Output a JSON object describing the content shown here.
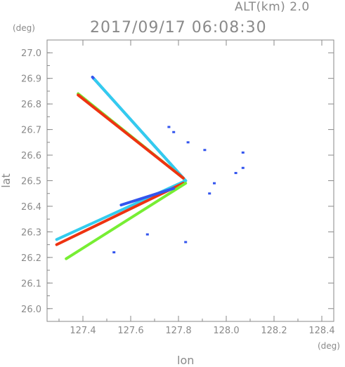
{
  "chart_data": {
    "type": "scatter",
    "title": "2017/09/17 06:08:30",
    "subtitle": "ALT(km) 2.0",
    "xlabel": "lon",
    "ylabel": "lat",
    "xunit": "(deg)",
    "yunit": "(deg)",
    "xlim": [
      127.25,
      128.45
    ],
    "ylim": [
      25.95,
      27.05
    ],
    "xticks": [
      "127.4",
      "127.6",
      "127.8",
      "128.0",
      "128.2",
      "128.4"
    ],
    "yticks": [
      "26.0",
      "26.1",
      "26.2",
      "26.3",
      "26.4",
      "26.5",
      "26.6",
      "26.7",
      "26.8",
      "26.9",
      "27.0"
    ],
    "grid": false,
    "colors": {
      "axis": "#8a8a8a",
      "blue": "#3355ee",
      "cyan": "#33ccee",
      "green": "#77ee33",
      "yellow": "#eeee22",
      "red": "#ee3311"
    },
    "beams": [
      {
        "from": [
          127.83,
          26.5
        ],
        "to": [
          127.44,
          26.905
        ],
        "color": "#3355ee"
      },
      {
        "from": [
          127.83,
          26.5
        ],
        "to": [
          127.45,
          26.895
        ],
        "color": "#33ccee"
      },
      {
        "from": [
          127.82,
          26.51
        ],
        "to": [
          127.38,
          26.84
        ],
        "color": "#77ee33"
      },
      {
        "from": [
          127.82,
          26.51
        ],
        "to": [
          127.38,
          26.835
        ],
        "color": "#ee3311"
      },
      {
        "from": [
          127.83,
          26.5
        ],
        "to": [
          127.29,
          26.27
        ],
        "color": "#33ccee"
      },
      {
        "from": [
          127.82,
          26.49
        ],
        "to": [
          127.29,
          26.25
        ],
        "color": "#ee3311"
      },
      {
        "from": [
          127.83,
          26.49
        ],
        "to": [
          127.33,
          26.195
        ],
        "color": "#77ee33"
      },
      {
        "from": [
          127.78,
          26.47
        ],
        "to": [
          127.56,
          26.405
        ],
        "color": "#3355ee"
      }
    ],
    "clutter": [
      {
        "x": 127.76,
        "y": 26.71,
        "color": "#3355ee"
      },
      {
        "x": 127.78,
        "y": 26.69,
        "color": "#3355ee"
      },
      {
        "x": 127.84,
        "y": 26.65,
        "color": "#3355ee"
      },
      {
        "x": 128.04,
        "y": 26.53,
        "color": "#3355ee"
      },
      {
        "x": 128.07,
        "y": 26.55,
        "color": "#3355ee"
      },
      {
        "x": 128.07,
        "y": 26.61,
        "color": "#3355ee"
      },
      {
        "x": 127.93,
        "y": 26.45,
        "color": "#3355ee"
      },
      {
        "x": 127.95,
        "y": 26.49,
        "color": "#3355ee"
      },
      {
        "x": 127.91,
        "y": 26.62,
        "color": "#3355ee"
      },
      {
        "x": 127.83,
        "y": 26.26,
        "color": "#3355ee"
      },
      {
        "x": 127.67,
        "y": 26.29,
        "color": "#3355ee"
      },
      {
        "x": 127.53,
        "y": 26.22,
        "color": "#3355ee"
      }
    ]
  }
}
